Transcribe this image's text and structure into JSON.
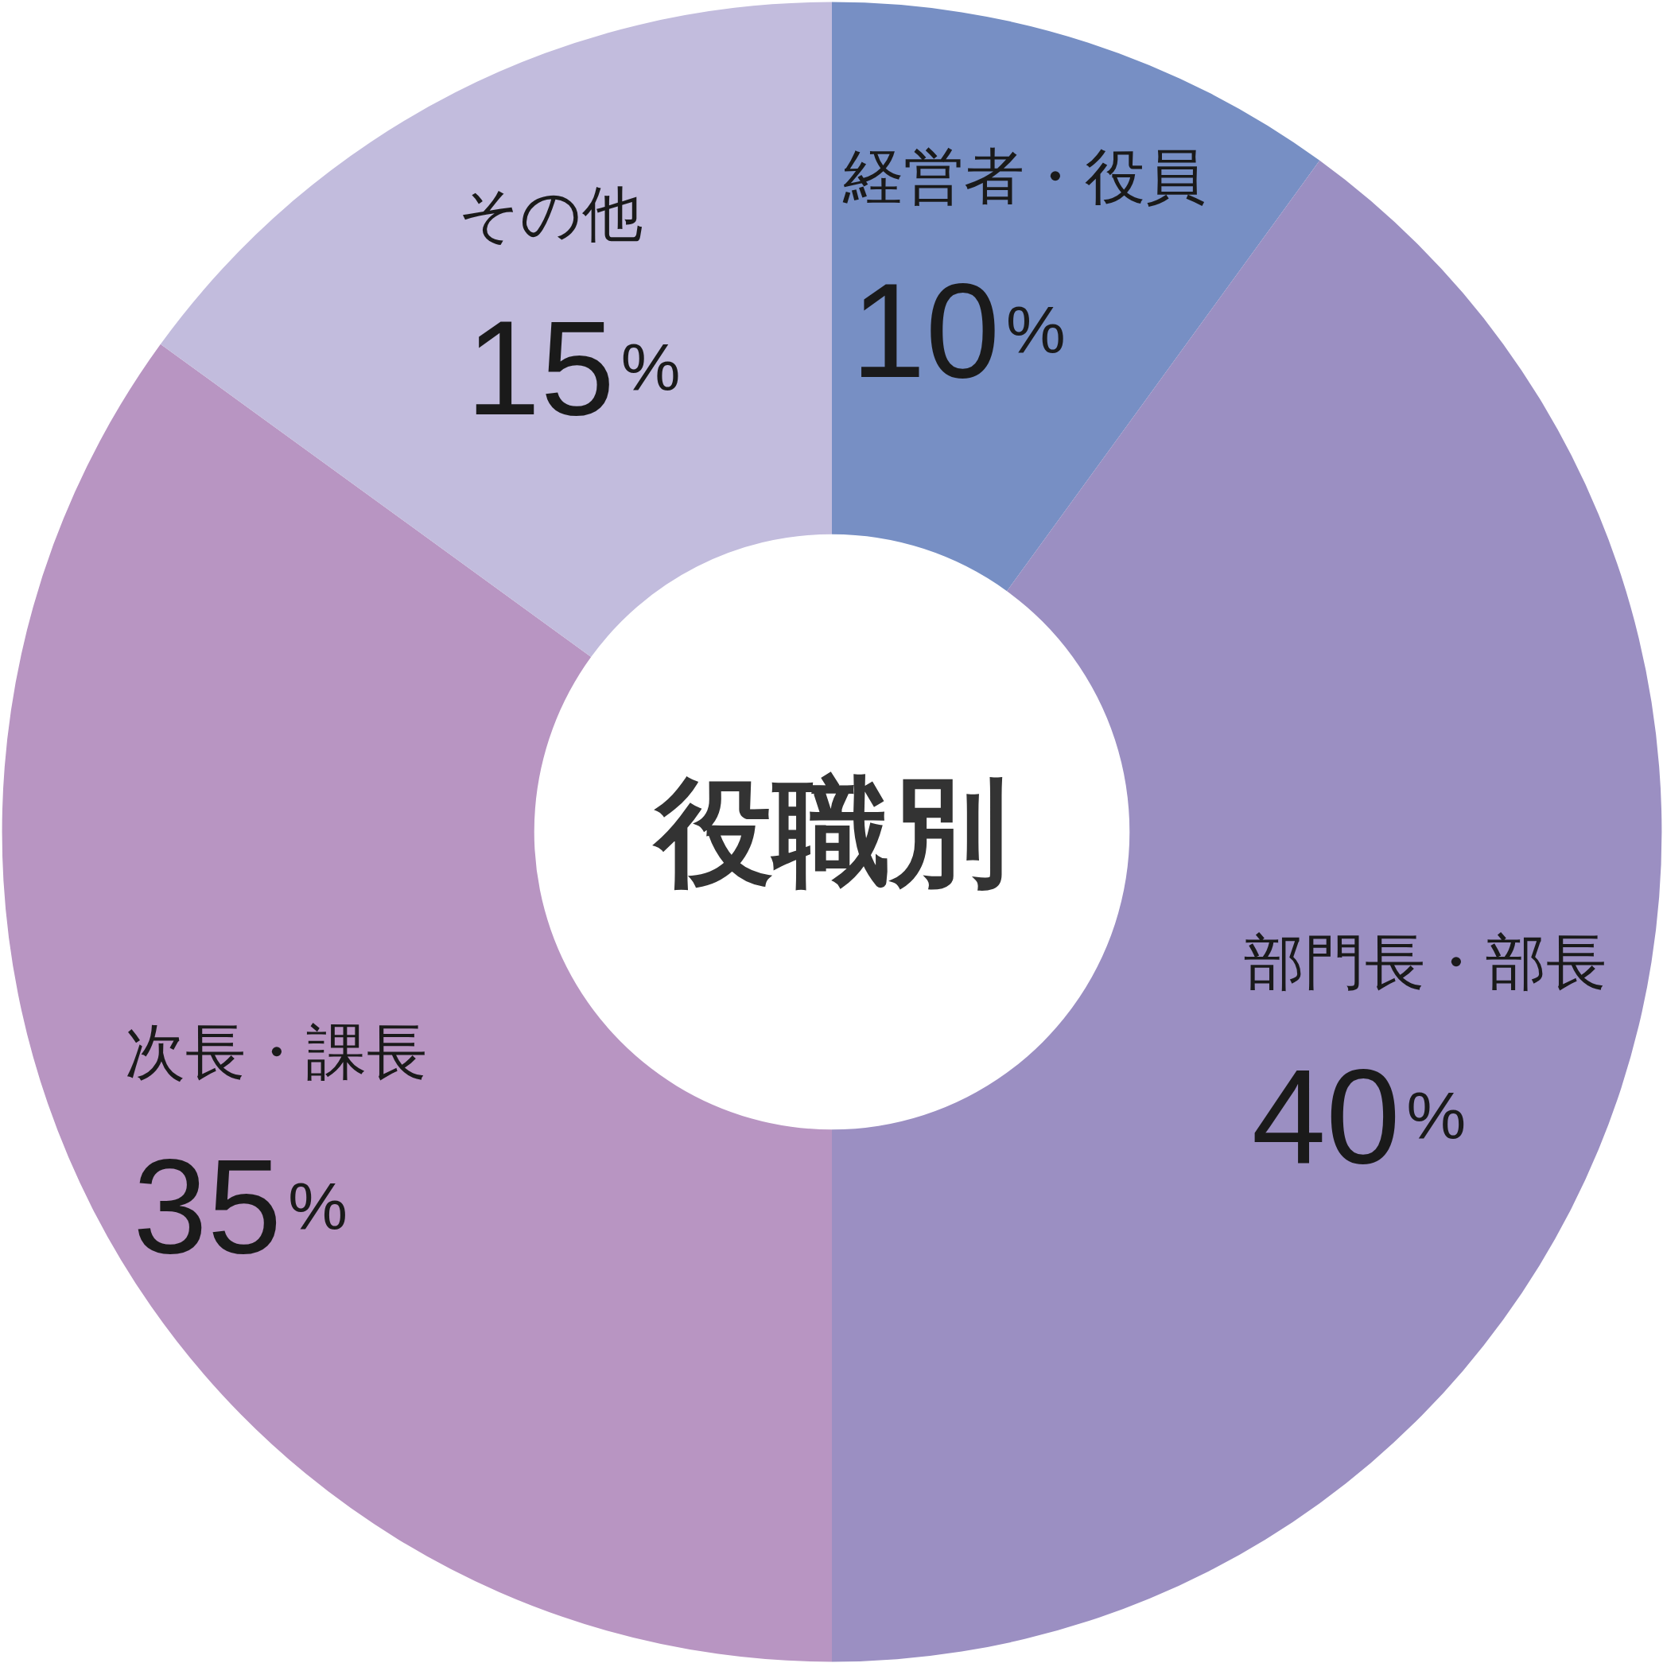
{
  "chart_data": {
    "type": "donut",
    "title": "役職別",
    "categories": [
      "経営者・役員",
      "部門長・部長",
      "次長・課長",
      "その他"
    ],
    "values": [
      10,
      40,
      35,
      15
    ],
    "colors": [
      "#778fc4",
      "#9b8fc2",
      "#b895c2",
      "#c2bcdd"
    ],
    "value_labels": [
      "10%",
      "40%",
      "35%",
      "15%"
    ]
  }
}
